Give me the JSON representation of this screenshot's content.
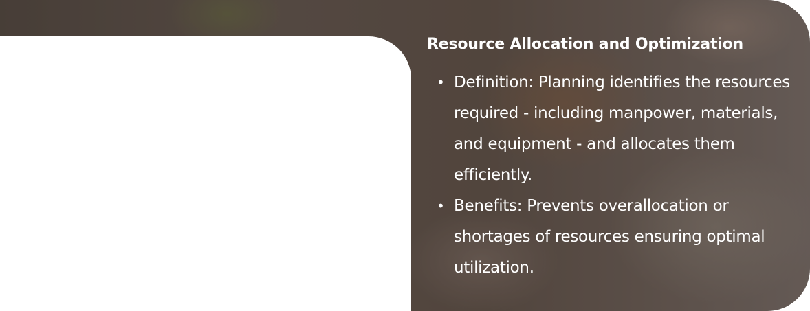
{
  "section": {
    "title": "Resource Allocation and Optimization",
    "bullets": [
      {
        "text": "Definition: Planning identifies the resources required - including manpower, materials, and equipment - and allocates them efficiently."
      },
      {
        "text": "Benefits: Prevents overallocation or shortages of resources  ensuring optimal utilization."
      }
    ]
  },
  "colors": {
    "text": "#ffffff",
    "overlay": "#3a2f2a",
    "background": "#ffffff"
  },
  "icons": {
    "bullet": "bullet-dot"
  }
}
